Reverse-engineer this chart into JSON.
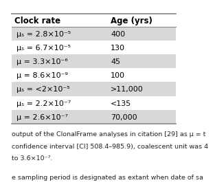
{
  "headers": [
    "Clock rate",
    "Age (yrs)"
  ],
  "clock_rates": [
    "μₛ = 2.8×10⁻⁵",
    "μₛ = 6.7×10⁻⁵",
    "μ = 3.3×10⁻⁶",
    "μ = 8.6×10⁻⁹",
    "μₛ = <2×10⁻⁵",
    "μₛ = 2.2×10⁻⁷",
    "μ = 2.6×10⁻⁷"
  ],
  "ages": [
    "400",
    "130",
    "45",
    "100",
    ">11,000",
    "<135",
    "70,000"
  ],
  "shaded_rows": [
    0,
    2,
    4,
    6
  ],
  "row_bg_shaded": "#d8d8d8",
  "row_bg_white": "#ffffff",
  "top_strip_color": "#ffffff",
  "line_color": "#888888",
  "font_size_header": 8.5,
  "font_size_data": 8.0,
  "font_size_footer": 6.8,
  "footer_block1": [
    "output of the ClonalFrame analyses in citation [29] as μ = t",
    "confidence interval [CI] 508.4–985.9), coalescent unit was 4",
    "to 3.6×10⁻⁷."
  ],
  "footer_block2": "e sampling period is designated as extant when date of sa",
  "background_color": "#ffffff"
}
